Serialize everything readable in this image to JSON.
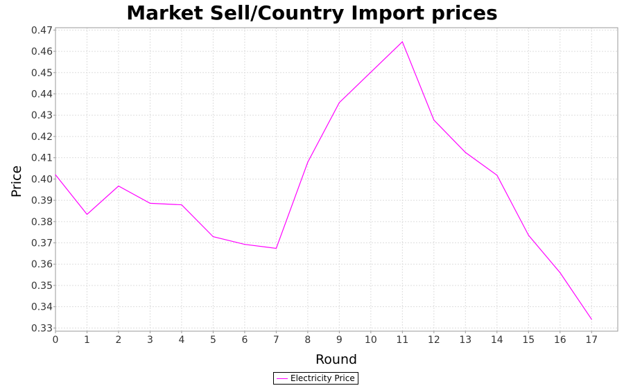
{
  "chart_data": {
    "type": "line",
    "title": "Market Sell/Country Import prices",
    "xlabel": "Round",
    "ylabel": "Price",
    "x": [
      0,
      1,
      2,
      3,
      4,
      5,
      6,
      7,
      8,
      9,
      10,
      11,
      12,
      13,
      14,
      15,
      16,
      17
    ],
    "series": [
      {
        "name": "Electricity Price",
        "color": "#ff00ff",
        "values": [
          0.402,
          0.3834,
          0.3967,
          0.3886,
          0.3879,
          0.3729,
          0.3693,
          0.3674,
          0.4079,
          0.4359,
          0.4502,
          0.4645,
          0.4277,
          0.4125,
          0.4018,
          0.3736,
          0.356,
          0.3341
        ]
      }
    ],
    "xlim": [
      0,
      17.83
    ],
    "ylim": [
      0.3285,
      0.4711
    ],
    "xticks": [
      "0",
      "1",
      "2",
      "3",
      "4",
      "5",
      "6",
      "7",
      "8",
      "9",
      "10",
      "11",
      "12",
      "13",
      "14",
      "15",
      "16",
      "17"
    ],
    "yticks": [
      "0.33",
      "0.34",
      "0.35",
      "0.36",
      "0.37",
      "0.38",
      "0.39",
      "0.40",
      "0.41",
      "0.42",
      "0.43",
      "0.44",
      "0.45",
      "0.46",
      "0.47"
    ],
    "grid": true,
    "legend": "bottom"
  }
}
